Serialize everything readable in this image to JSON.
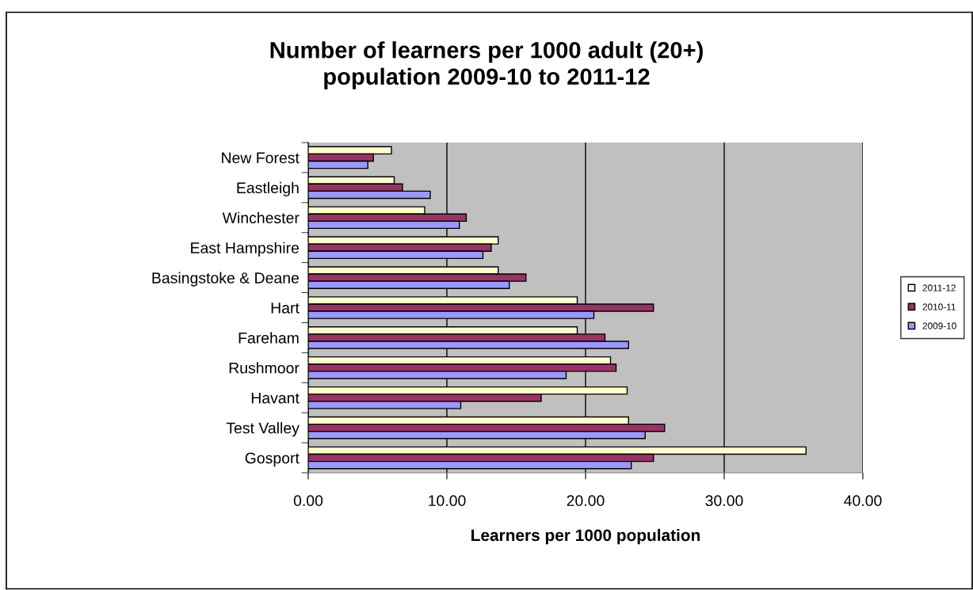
{
  "chart_data": {
    "type": "bar",
    "orientation": "horizontal",
    "title": "Number of learners per 1000 adult (20+)\npopulation 2009-10 to 2011-12",
    "xlabel": "Learners per 1000 population",
    "categories": [
      "New Forest",
      "Eastleigh",
      "Winchester",
      "East Hampshire",
      "Basingstoke & Deane",
      "Hart",
      "Fareham",
      "Rushmoor",
      "Havant",
      "Test Valley",
      "Gosport"
    ],
    "series": [
      {
        "name": "2011-12",
        "color": "#ffffcc",
        "values": [
          6.0,
          6.2,
          8.4,
          13.7,
          13.7,
          19.4,
          19.4,
          21.8,
          23.0,
          23.1,
          35.9
        ]
      },
      {
        "name": "2010-11",
        "color": "#993366",
        "values": [
          4.7,
          6.8,
          11.4,
          13.2,
          15.7,
          24.9,
          21.4,
          22.2,
          16.8,
          25.7,
          24.9
        ]
      },
      {
        "name": "2009-10",
        "color": "#9999ff",
        "values": [
          4.3,
          8.8,
          10.9,
          12.6,
          14.5,
          20.6,
          23.1,
          18.6,
          11.0,
          24.3,
          23.3
        ]
      }
    ],
    "xlim": [
      0,
      40
    ],
    "xticks": [
      {
        "value": 0,
        "label": "0.00"
      },
      {
        "value": 10,
        "label": "10.00"
      },
      {
        "value": 20,
        "label": "20.00"
      },
      {
        "value": 30,
        "label": "30.00"
      },
      {
        "value": 40,
        "label": "40.00"
      }
    ],
    "grid": "x",
    "legend": "right"
  }
}
